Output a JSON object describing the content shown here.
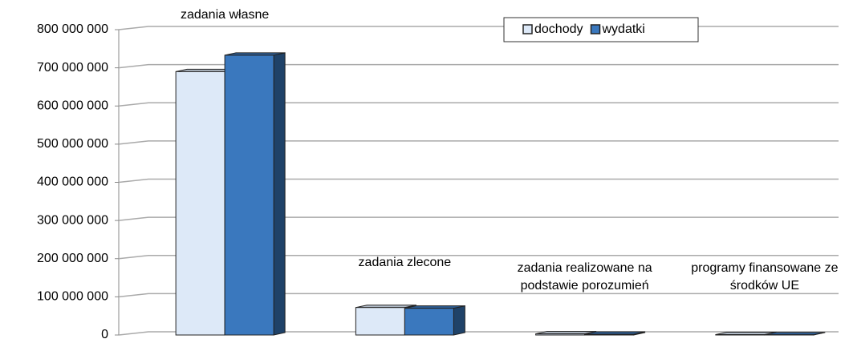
{
  "chart_data": {
    "type": "bar3d",
    "categories": [
      "zadania własne",
      "zadania zlecone",
      "zadania realizowane na podstawie porozumień",
      "programy finansowane ze środków UE"
    ],
    "series": [
      {
        "name": "dochody",
        "color": "#dde9f8",
        "values": [
          690000000,
          72000000,
          3000000,
          1000000
        ]
      },
      {
        "name": "wydatki",
        "color": "#3a78be",
        "values": [
          733000000,
          70000000,
          2000000,
          500000
        ]
      }
    ],
    "ylim": [
      0,
      800000000
    ],
    "yticks": [
      {
        "value": 0,
        "label": "0"
      },
      {
        "value": 100000000,
        "label": "100 000 000"
      },
      {
        "value": 200000000,
        "label": "200 000 000"
      },
      {
        "value": 300000000,
        "label": "300 000 000"
      },
      {
        "value": 400000000,
        "label": "400 000 000"
      },
      {
        "value": 500000000,
        "label": "500 000 000"
      },
      {
        "value": 600000000,
        "label": "600 000 000"
      },
      {
        "value": 700000000,
        "label": "700 000 000"
      },
      {
        "value": 800000000,
        "label": "800 000 000"
      }
    ],
    "grid": true,
    "legend": "top-right"
  }
}
